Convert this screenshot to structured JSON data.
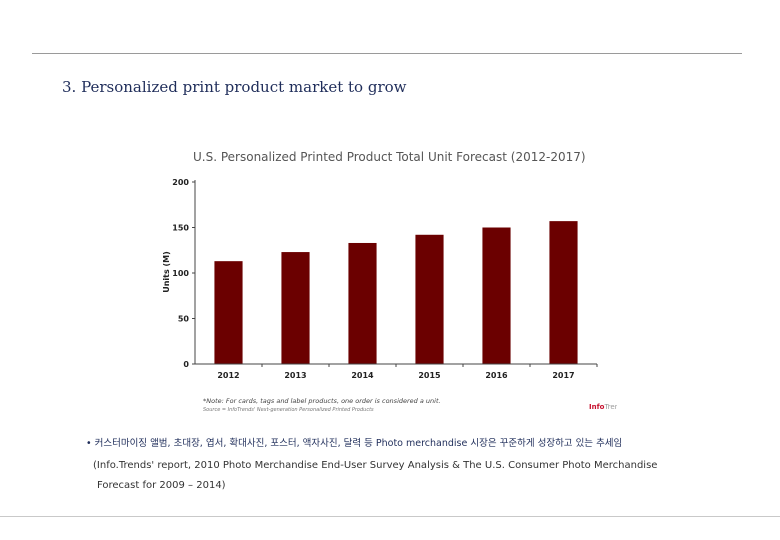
{
  "slide": {
    "title": "3. Personalized print product market to grow",
    "bullet_marker": "•",
    "bullet_text": "커스터마이징 앨범, 초대장, 엽서, 확대사진, 포스터, 액자사진, 달력  등  Photo merchandise 시장은 꾸준하게 성장하고 있는 추세임",
    "reference_line1": "(Info.Trends' report, 2010 Photo Merchandise End-User Survey Analysis & The U.S. Consumer Photo Merchandise",
    "reference_line2": "Forecast for 2009 – 2014)"
  },
  "chart_data": {
    "type": "bar",
    "title": "U.S. Personalized Printed Product Total Unit Forecast (2012-2017)",
    "categories": [
      "2012",
      "2013",
      "2014",
      "2015",
      "2016",
      "2017"
    ],
    "values": [
      113,
      123,
      133,
      142,
      150,
      157
    ],
    "ylabel": "Units (M)",
    "xlabel": "",
    "ylim": [
      0,
      200
    ],
    "yticks": [
      "0",
      "50",
      "100",
      "150",
      "200"
    ],
    "grid": false,
    "legend": "none",
    "bar_color": "#6b0000",
    "note": "*Note: For cards, tags and label products, one order is considered a unit.",
    "source": "Source = InfoTrends' Next-generation Personalized Printed Products",
    "logo_part1": "Info",
    "logo_part2": "Trends"
  }
}
